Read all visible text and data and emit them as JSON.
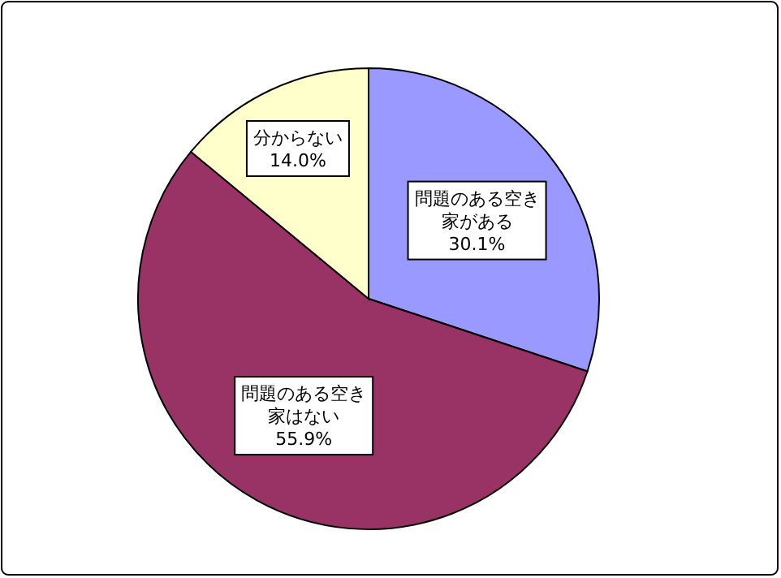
{
  "chart_data": {
    "type": "pie",
    "categories": [
      "問題のある空き家がある",
      "問題のある空き家はない",
      "分からない"
    ],
    "values": [
      30.1,
      55.9,
      14.0
    ],
    "value_labels": [
      "30.1%",
      "55.9%",
      "14.0%"
    ],
    "colors": [
      "#9999ff",
      "#993366",
      "#ffffcc"
    ]
  }
}
